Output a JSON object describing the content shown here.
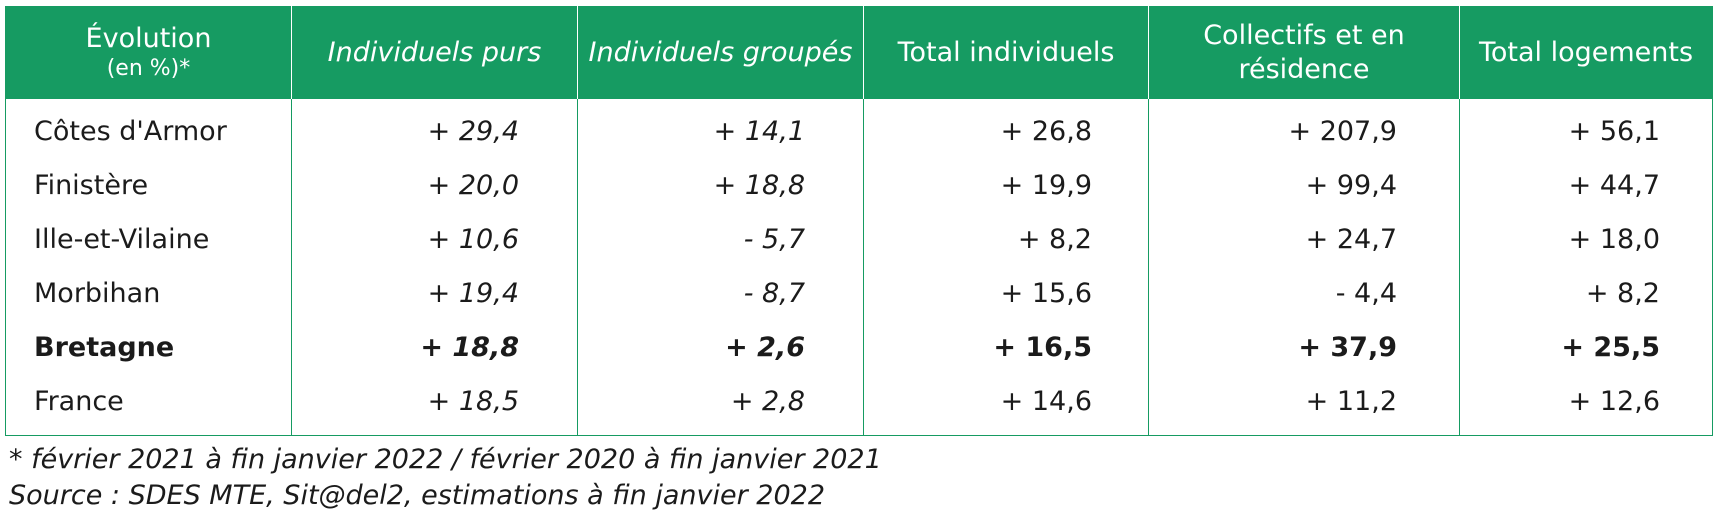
{
  "table": {
    "headers": [
      {
        "main": "Évolution",
        "sub": "(en %)*"
      },
      {
        "label": "Individuels purs"
      },
      {
        "label": "Individuels groupés"
      },
      {
        "label": "Total individuels"
      },
      {
        "label": "Collectifs et en résidence"
      },
      {
        "label": "Total logements"
      }
    ],
    "rows": [
      {
        "region": "Côtes d'Armor",
        "values": [
          "+ 29,4",
          "+ 14,1",
          "+ 26,8",
          "+ 207,9",
          "+ 56,1"
        ]
      },
      {
        "region": "Finistère",
        "values": [
          "+ 20,0",
          "+ 18,8",
          "+ 19,9",
          "+ 99,4",
          "+ 44,7"
        ]
      },
      {
        "region": "Ille-et-Vilaine",
        "values": [
          "+ 10,6",
          "- 5,7",
          "+ 8,2",
          "+ 24,7",
          "+ 18,0"
        ]
      },
      {
        "region": "Morbihan",
        "values": [
          "+ 19,4",
          "- 8,7",
          "+ 15,6",
          "- 4,4",
          "+ 8,2"
        ]
      },
      {
        "region": "Bretagne",
        "values": [
          "+ 18,8",
          "+ 2,6",
          "+ 16,5",
          "+ 37,9",
          "+ 25,5"
        ]
      },
      {
        "region": "France",
        "values": [
          "+ 18,5",
          "+ 2,8",
          "+ 14,6",
          "+ 11,2",
          "+ 12,6"
        ]
      }
    ]
  },
  "notes": {
    "period": "* février 2021 à fin janvier 2022 /  février 2020 à fin janvier 2021",
    "source": "Source : SDES MTE, Sit@del2, estimations à fin janvier 2022"
  },
  "colors": {
    "header_bg": "#169b62",
    "header_text": "#ffffff",
    "border": "#169b62"
  }
}
